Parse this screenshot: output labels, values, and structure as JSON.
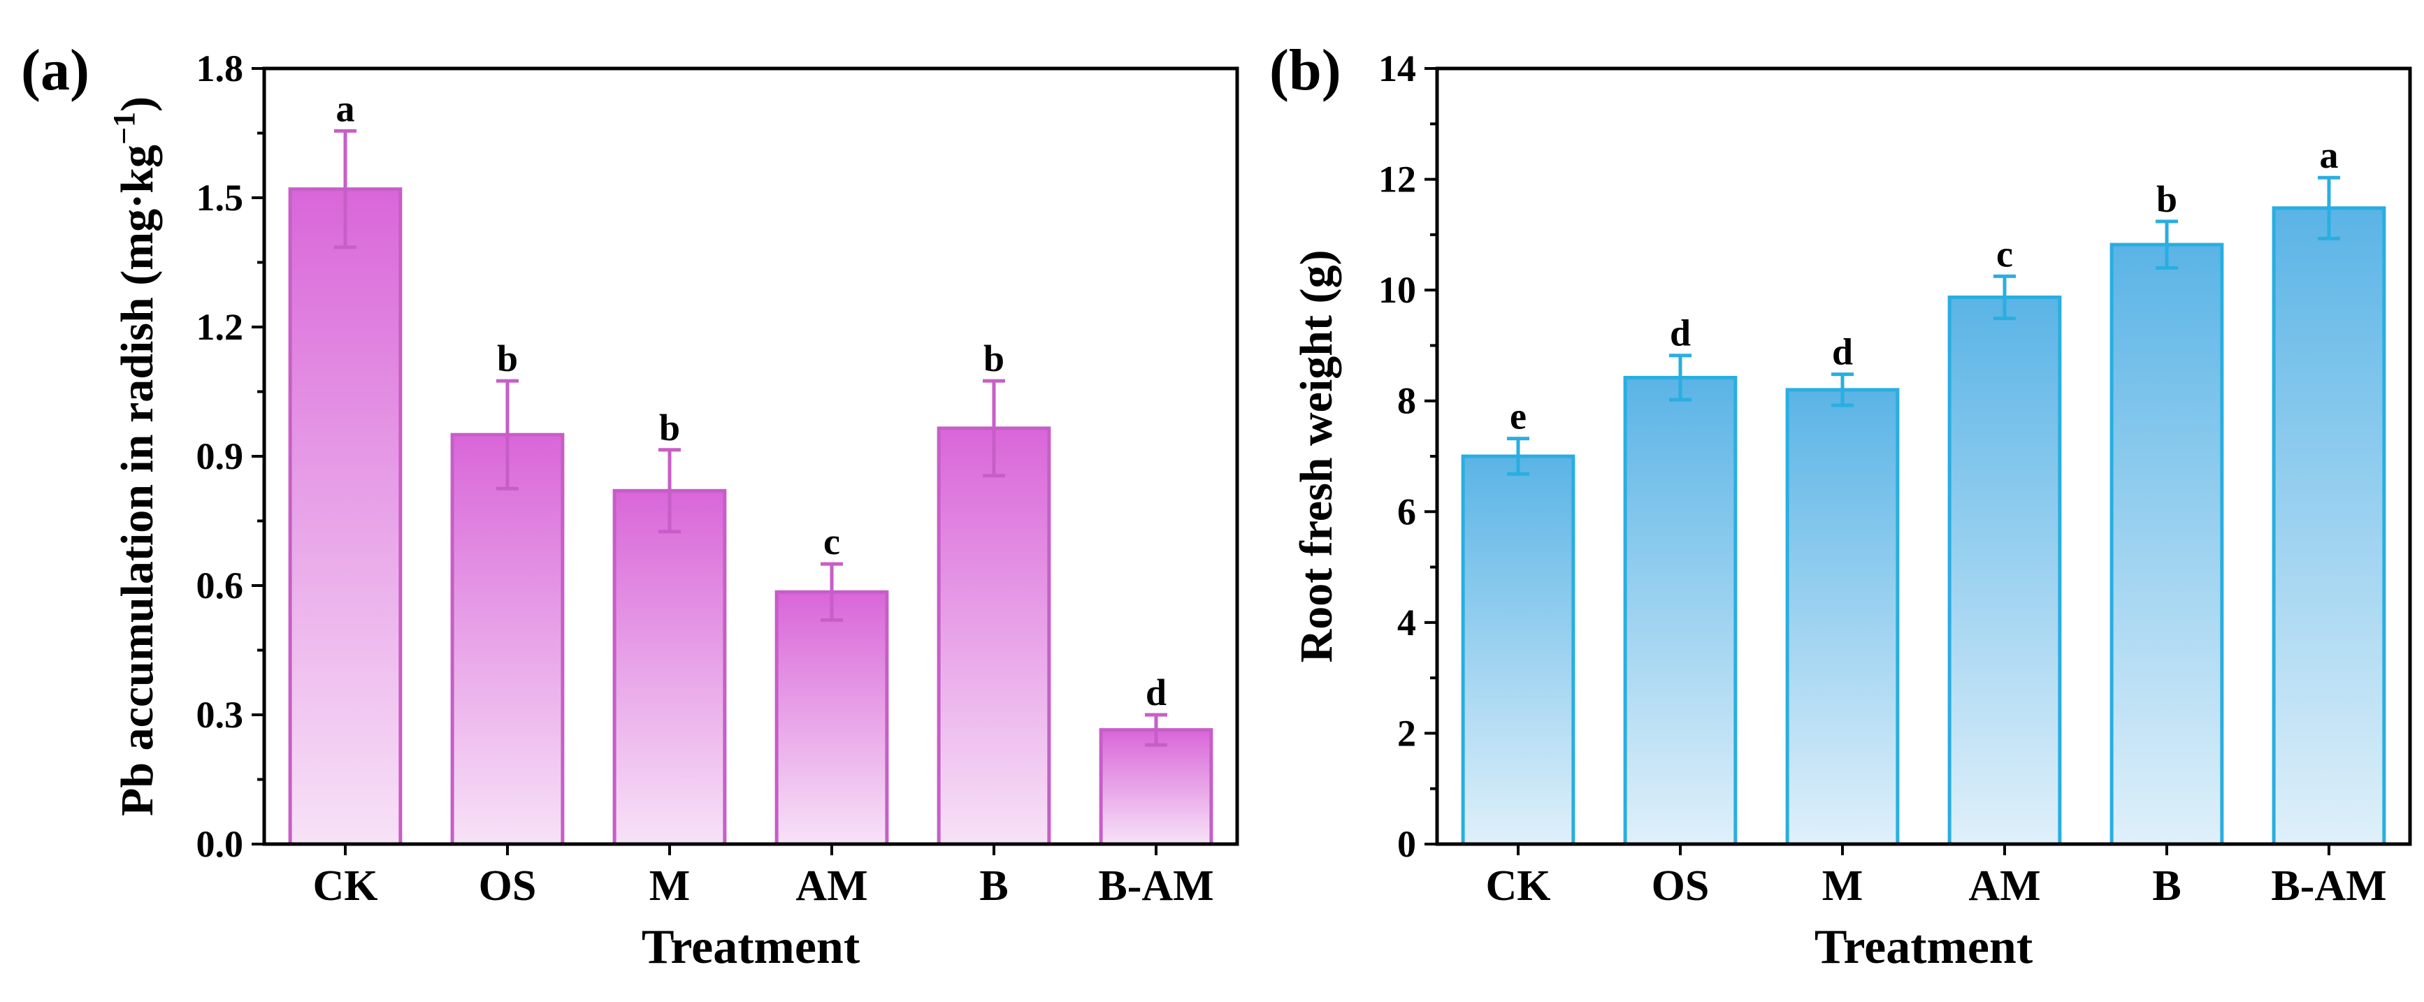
{
  "figure": {
    "description": "Two bar charts with error bars and significance letters",
    "treatments": [
      "CK",
      "OS",
      "M",
      "AM",
      "B",
      "B-AM"
    ]
  },
  "chart_data": [
    {
      "type": "bar",
      "panel_label": "(a)",
      "title": "",
      "xlabel": "Treatment",
      "ylabel": "Pb accumulation in radish (mg·kg",
      "ylabel_superscript": "−1",
      "ylabel_suffix": ")",
      "categories": [
        "CK",
        "OS",
        "M",
        "AM",
        "B",
        "B-AM"
      ],
      "values": [
        1.52,
        0.95,
        0.82,
        0.585,
        0.965,
        0.265
      ],
      "errors": [
        0.135,
        0.125,
        0.095,
        0.065,
        0.11,
        0.035
      ],
      "letters": [
        "a",
        "b",
        "b",
        "c",
        "b",
        "d"
      ],
      "ylim": [
        0,
        1.8
      ],
      "yticks": [
        0.0,
        0.3,
        0.6,
        0.9,
        1.2,
        1.5,
        1.8
      ],
      "ytick_labels": [
        "0.0",
        "0.3",
        "0.6",
        "0.9",
        "1.2",
        "1.5",
        "1.8"
      ],
      "colors": {
        "top": "#d966d9",
        "bottom": "#f7e2f7",
        "edge": "#c75ec7"
      }
    },
    {
      "type": "bar",
      "panel_label": "(b)",
      "title": "",
      "xlabel": "Treatment",
      "ylabel": "Root fresh weight (g)",
      "categories": [
        "CK",
        "OS",
        "M",
        "AM",
        "B",
        "B-AM"
      ],
      "values": [
        7.0,
        8.42,
        8.2,
        9.87,
        10.82,
        11.48
      ],
      "errors": [
        0.32,
        0.4,
        0.28,
        0.38,
        0.42,
        0.55
      ],
      "letters": [
        "e",
        "d",
        "d",
        "c",
        "b",
        "a"
      ],
      "ylim": [
        0,
        14
      ],
      "yticks": [
        0,
        2,
        4,
        6,
        8,
        10,
        12,
        14
      ],
      "ytick_labels": [
        "0",
        "2",
        "4",
        "6",
        "8",
        "10",
        "12",
        "14"
      ],
      "colors": {
        "top": "#5ab4e6",
        "bottom": "#dff0fa",
        "edge": "#29aee0"
      }
    }
  ]
}
